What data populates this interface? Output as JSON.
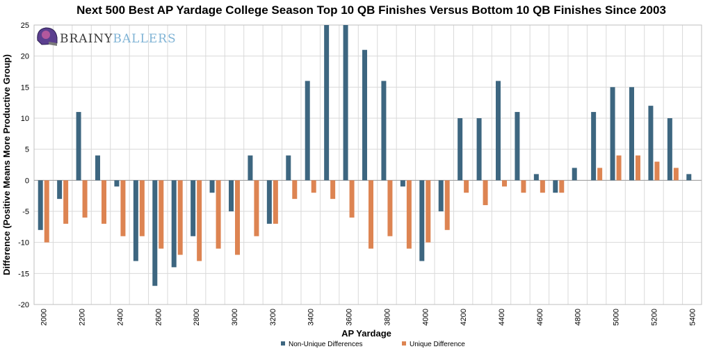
{
  "logo": {
    "text_a": "BRAINY",
    "text_b": "BALLERS"
  },
  "colors": {
    "non_unique": "#3d6680",
    "unique": "#dd8452",
    "grid": "#d9d9d9",
    "logo_dark": "#3a3a3a",
    "logo_light": "#7fb3d5"
  },
  "chart_data": {
    "type": "bar",
    "title": "Next 500 Best AP Yardage College Season Top 10 QB Finishes Versus Bottom 10 QB Finishes Since 2003",
    "xlabel": "AP Yardage",
    "ylabel": "Difference (Positive Means More Productive Group)",
    "ylim": [
      -20,
      25
    ],
    "yticks": [
      25,
      20,
      15,
      10,
      5,
      0,
      -5,
      -10,
      -15,
      -20
    ],
    "grid": true,
    "legend_position": "bottom",
    "categories": [
      2000,
      2100,
      2200,
      2300,
      2400,
      2500,
      2600,
      2700,
      2800,
      2900,
      3000,
      3100,
      3200,
      3300,
      3400,
      3500,
      3600,
      3700,
      3800,
      3900,
      4000,
      4100,
      4200,
      4300,
      4400,
      4500,
      4600,
      4700,
      4800,
      4900,
      5000,
      5100,
      5200,
      5300,
      5400
    ],
    "xtick_labels": [
      "2000",
      "2200",
      "2400",
      "2600",
      "2800",
      "3000",
      "3200",
      "3400",
      "3600",
      "3800",
      "4000",
      "4200",
      "4400",
      "4600",
      "4800",
      "5000",
      "5200",
      "5400"
    ],
    "series": [
      {
        "name": "Non-Unique Differences",
        "values": [
          -8,
          -3,
          11,
          4,
          -1,
          -13,
          -17,
          -14,
          -9,
          -2,
          -5,
          4,
          -7,
          4,
          16,
          25,
          25,
          21,
          16,
          -1,
          -13,
          -5,
          10,
          10,
          16,
          11,
          1,
          -2,
          2,
          11,
          15,
          15,
          12,
          10,
          1
        ]
      },
      {
        "name": "Unique Difference",
        "values": [
          -10,
          -7,
          -6,
          -7,
          -9,
          -9,
          -11,
          -12,
          -13,
          -11,
          -12,
          -9,
          -7,
          -3,
          -2,
          -3,
          -6,
          -11,
          -9,
          -11,
          -10,
          -8,
          -2,
          -4,
          -1,
          -2,
          -2,
          -2,
          0,
          2,
          4,
          4,
          3,
          2,
          0
        ]
      }
    ]
  }
}
